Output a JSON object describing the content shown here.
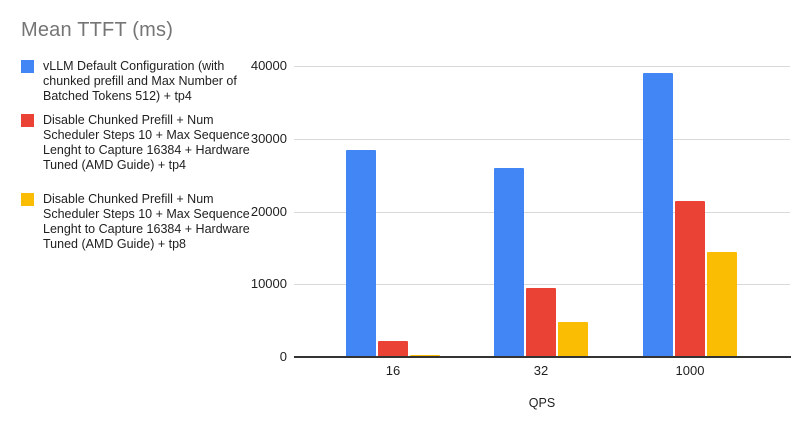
{
  "title": "Mean TTFT (ms)",
  "legend": {
    "position": "left",
    "items": [
      {
        "label": "vLLM Default Configuration (with chunked prefill and Max Number of Batched Tokens 512) + tp4",
        "color": "#4285F4"
      },
      {
        "label": "Disable Chunked Prefill + Num Scheduler Steps 10 + Max Sequence Lenght to Capture 16384 + Hardware Tuned (AMD Guide) + tp4",
        "color": "#EA4335"
      },
      {
        "label": "Disable Chunked Prefill + Num Scheduler Steps 10 + Max Sequence Lenght to Capture 16384 + Hardware Tuned (AMD Guide) + tp8",
        "color": "#FBBC04"
      }
    ]
  },
  "chart_data": {
    "type": "bar",
    "title": "Mean TTFT (ms)",
    "categories": [
      "16",
      "32",
      "1000"
    ],
    "series": [
      {
        "name": "vLLM Default Configuration (with chunked prefill and Max Number of Batched Tokens 512) + tp4",
        "color": "#4285F4",
        "values": [
          28500,
          26000,
          39000
        ]
      },
      {
        "name": "Disable Chunked Prefill + Num Scheduler Steps 10 + Max Sequence Lenght to Capture 16384 + Hardware Tuned (AMD Guide) + tp4",
        "color": "#EA4335",
        "values": [
          2250,
          9500,
          21500
        ]
      },
      {
        "name": "Disable Chunked Prefill + Num Scheduler Steps 10 + Max Sequence Lenght to Capture 16384 + Hardware Tuned (AMD Guide) + tp8",
        "color": "#FBBC04",
        "values": [
          300,
          4800,
          14500
        ]
      }
    ],
    "xlabel": "QPS",
    "ylabel": "",
    "ylim": [
      0,
      40000
    ],
    "yticks": [
      0,
      10000,
      20000,
      30000,
      40000
    ],
    "grid": true,
    "legend_position": "left"
  },
  "colors": {
    "background": "#ffffff",
    "title_text": "#757575",
    "legend_text": "#1f1f1f",
    "axis_text": "#1f1f1f",
    "gridline": "#d9d9d9",
    "axis_line": "#333333",
    "series_blue": "#4285F4",
    "series_red": "#EA4335",
    "series_yellow": "#FBBC04"
  }
}
